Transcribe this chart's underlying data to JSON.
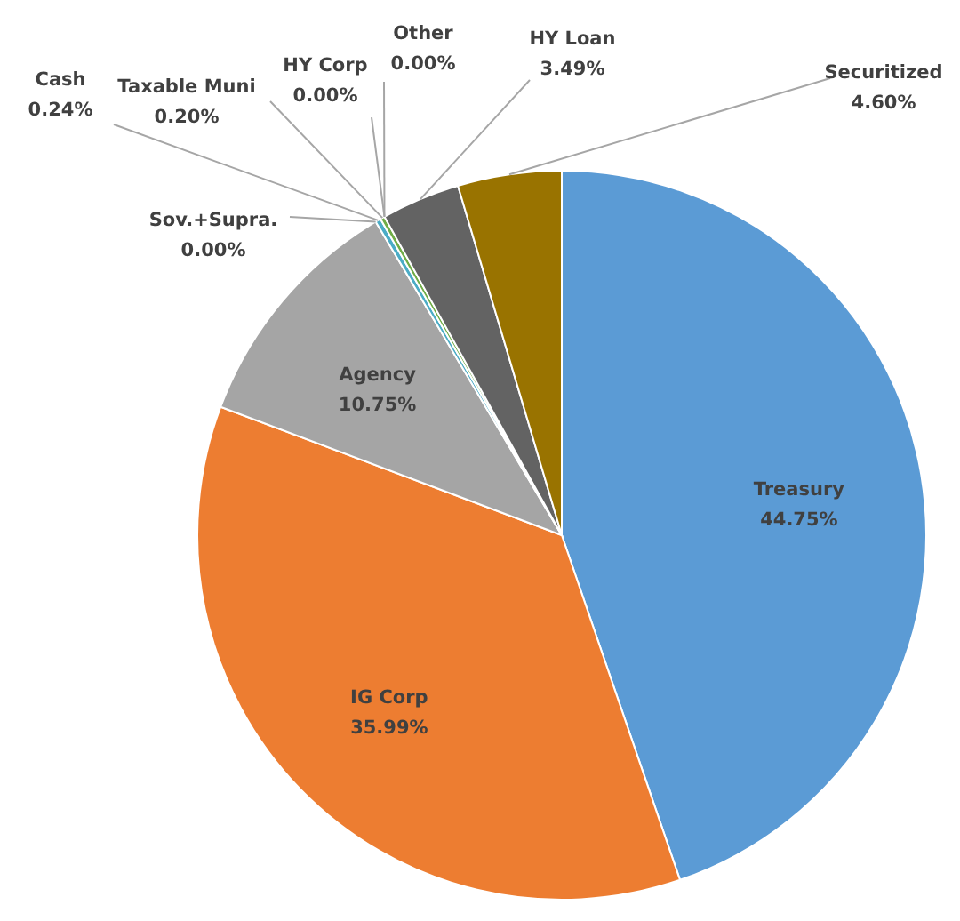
{
  "chart_data": {
    "type": "pie",
    "categories": [
      "Treasury",
      "IG Corp",
      "Agency",
      "Sov.+Supra.",
      "Cash",
      "Taxable Muni",
      "HY Corp",
      "Other",
      "HY Loan",
      "Securitized"
    ],
    "values": [
      44.75,
      35.99,
      10.75,
      0.0,
      0.24,
      0.2,
      0.0,
      0.0,
      3.49,
      4.6
    ],
    "value_labels": [
      "44.75%",
      "35.99%",
      "10.75%",
      "0.00%",
      "0.24%",
      "0.20%",
      "0.00%",
      "0.00%",
      "3.49%",
      "4.60%"
    ],
    "colors": [
      "#5b9bd5",
      "#ed7d31",
      "#a5a5a5",
      "#ffc000",
      "#4bacc6",
      "#70ad47",
      "#264478",
      "#9e480e",
      "#636363",
      "#997300"
    ]
  }
}
